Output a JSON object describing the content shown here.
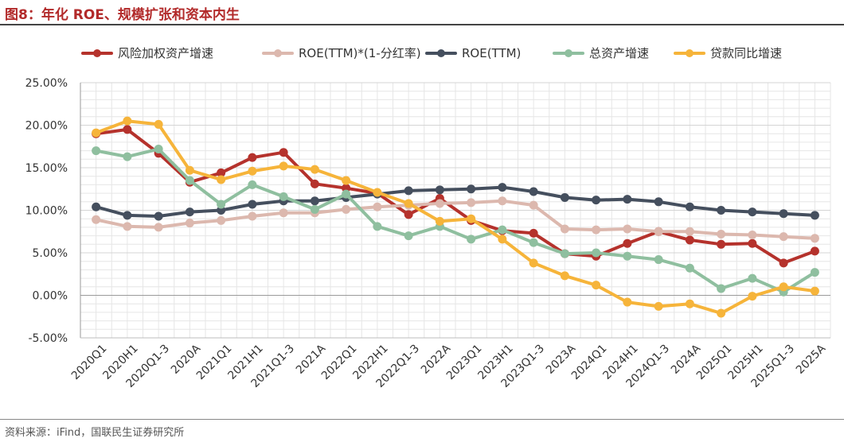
{
  "header": {
    "title": "图8：年化 ROE、规模扩张和资本内生"
  },
  "footer": {
    "source": "资料来源：iFind，国联民生证券研究所"
  },
  "chart_data": {
    "type": "line",
    "title": "图8：年化 ROE、规模扩张和资本内生",
    "xlabel": "",
    "ylabel": "",
    "ylim": [
      -5,
      25
    ],
    "yticks": [
      -5,
      0,
      5,
      10,
      15,
      20,
      25
    ],
    "ytick_labels": [
      "-5.00%",
      "0.00%",
      "5.00%",
      "10.00%",
      "15.00%",
      "20.00%",
      "25.00%"
    ],
    "grid": true,
    "legend_position": "top",
    "categories": [
      "2020Q1",
      "2020H1",
      "2020Q1-3",
      "2020A",
      "2021Q1",
      "2021H1",
      "2021Q1-3",
      "2021A",
      "2022Q1",
      "2022H1",
      "2022Q1-3",
      "2022A",
      "2023Q1",
      "2023H1",
      "2023Q1-3",
      "2023A",
      "2024Q1",
      "2024H1",
      "2024Q1-3",
      "2024A",
      "2025Q1",
      "2025H1",
      "2025Q1-3",
      "2025A"
    ],
    "series": [
      {
        "name": "风险加权资产增速",
        "color": "#b5322c",
        "values": [
          19.0,
          19.5,
          16.7,
          13.3,
          14.4,
          16.2,
          16.8,
          13.1,
          12.6,
          12.0,
          9.5,
          11.4,
          8.8,
          7.6,
          7.3,
          4.9,
          4.6,
          6.1,
          7.5,
          6.5,
          6.0,
          6.1,
          3.8,
          5.2
        ]
      },
      {
        "name": "ROE(TTM)*(1-分红率)",
        "color": "#dcb8ae",
        "values": [
          8.9,
          8.1,
          8.0,
          8.5,
          8.8,
          9.3,
          9.7,
          9.7,
          10.1,
          10.4,
          10.6,
          10.8,
          10.9,
          11.1,
          10.6,
          7.8,
          7.7,
          7.8,
          7.5,
          7.5,
          7.2,
          7.1,
          6.9,
          6.7
        ]
      },
      {
        "name": "ROE(TTM)",
        "color": "#454f5e",
        "values": [
          10.4,
          9.4,
          9.3,
          9.8,
          10.0,
          10.7,
          11.1,
          11.1,
          11.5,
          11.9,
          12.3,
          12.4,
          12.5,
          12.7,
          12.2,
          11.5,
          11.2,
          11.3,
          11.0,
          10.4,
          10.0,
          9.8,
          9.6,
          9.4
        ]
      },
      {
        "name": "总资产增速",
        "color": "#8fbf9f",
        "values": [
          17.0,
          16.3,
          17.2,
          13.5,
          10.7,
          13.0,
          11.6,
          10.1,
          11.9,
          8.1,
          7.0,
          8.1,
          6.6,
          7.7,
          6.2,
          4.9,
          5.0,
          4.6,
          4.2,
          3.2,
          0.8,
          2.0,
          0.4,
          2.7
        ]
      },
      {
        "name": "贷款同比增速",
        "color": "#f6b43a",
        "values": [
          19.1,
          20.5,
          20.1,
          14.7,
          13.6,
          14.6,
          15.2,
          14.8,
          13.5,
          12.1,
          10.8,
          8.7,
          9.0,
          6.6,
          3.8,
          2.3,
          1.2,
          -0.8,
          -1.3,
          -1.0,
          -2.1,
          -0.1,
          1.0,
          0.5
        ]
      }
    ]
  }
}
